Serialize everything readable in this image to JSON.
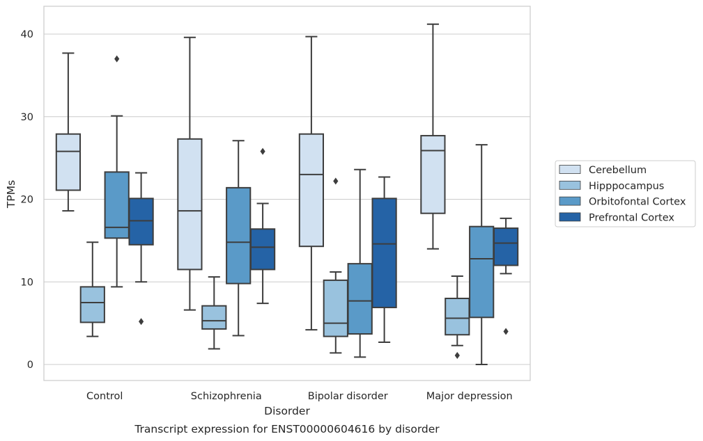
{
  "caption": "Transcript expression for ENST00000604616 by disorder",
  "chart_data": {
    "type": "box",
    "xlabel": "Disorder",
    "ylabel": "TPMs",
    "ylim": [
      -2,
      43
    ],
    "yticks": [
      0,
      10,
      20,
      30,
      40
    ],
    "grid": true,
    "legend_position": "right",
    "categories": [
      "Control",
      "Schizophrenia",
      "Bipolar disorder",
      "Major depression"
    ],
    "series": [
      {
        "name": "Cerebellum",
        "color": "#d1e1f1",
        "boxes": [
          {
            "whisker_low": 18.6,
            "q1": 21.1,
            "median": 25.8,
            "q3": 27.9,
            "whisker_high": 37.7,
            "outliers": []
          },
          {
            "whisker_low": 6.6,
            "q1": 11.5,
            "median": 18.6,
            "q3": 27.3,
            "whisker_high": 39.6,
            "outliers": []
          },
          {
            "whisker_low": 4.2,
            "q1": 14.3,
            "median": 23.0,
            "q3": 27.9,
            "whisker_high": 39.7,
            "outliers": []
          },
          {
            "whisker_low": 14.0,
            "q1": 18.3,
            "median": 25.9,
            "q3": 27.7,
            "whisker_high": 41.2,
            "outliers": []
          }
        ]
      },
      {
        "name": "Hipppocampus",
        "color": "#99c2de",
        "boxes": [
          {
            "whisker_low": 3.4,
            "q1": 5.1,
            "median": 7.5,
            "q3": 9.4,
            "whisker_high": 14.8,
            "outliers": []
          },
          {
            "whisker_low": 1.9,
            "q1": 4.3,
            "median": 5.3,
            "q3": 7.1,
            "whisker_high": 10.6,
            "outliers": []
          },
          {
            "whisker_low": 1.4,
            "q1": 3.4,
            "median": 5.0,
            "q3": 10.2,
            "whisker_high": 11.2,
            "outliers": [
              22.2
            ]
          },
          {
            "whisker_low": 2.3,
            "q1": 3.6,
            "median": 5.6,
            "q3": 8.0,
            "whisker_high": 10.7,
            "outliers": [
              1.1
            ]
          }
        ]
      },
      {
        "name": "Orbitofontal Cortex",
        "color": "#5a9ac8",
        "boxes": [
          {
            "whisker_low": 9.4,
            "q1": 15.3,
            "median": 16.6,
            "q3": 23.3,
            "whisker_high": 30.1,
            "outliers": [
              37.0
            ]
          },
          {
            "whisker_low": 3.5,
            "q1": 9.8,
            "median": 14.8,
            "q3": 21.4,
            "whisker_high": 27.1,
            "outliers": []
          },
          {
            "whisker_low": 0.9,
            "q1": 3.7,
            "median": 7.7,
            "q3": 12.2,
            "whisker_high": 23.6,
            "outliers": []
          },
          {
            "whisker_low": 0.0,
            "q1": 5.7,
            "median": 12.8,
            "q3": 16.7,
            "whisker_high": 26.6,
            "outliers": []
          }
        ]
      },
      {
        "name": "Prefrontal Cortex",
        "color": "#2563a6",
        "boxes": [
          {
            "whisker_low": 10.0,
            "q1": 14.5,
            "median": 17.4,
            "q3": 20.1,
            "whisker_high": 23.2,
            "outliers": [
              5.2
            ]
          },
          {
            "whisker_low": 7.4,
            "q1": 11.5,
            "median": 14.2,
            "q3": 16.4,
            "whisker_high": 19.5,
            "outliers": [
              25.8
            ]
          },
          {
            "whisker_low": 2.7,
            "q1": 6.9,
            "median": 14.6,
            "q3": 20.1,
            "whisker_high": 22.7,
            "outliers": []
          },
          {
            "whisker_low": 11.0,
            "q1": 12.0,
            "median": 14.7,
            "q3": 16.5,
            "whisker_high": 17.7,
            "outliers": [
              4.0
            ]
          }
        ]
      }
    ]
  }
}
